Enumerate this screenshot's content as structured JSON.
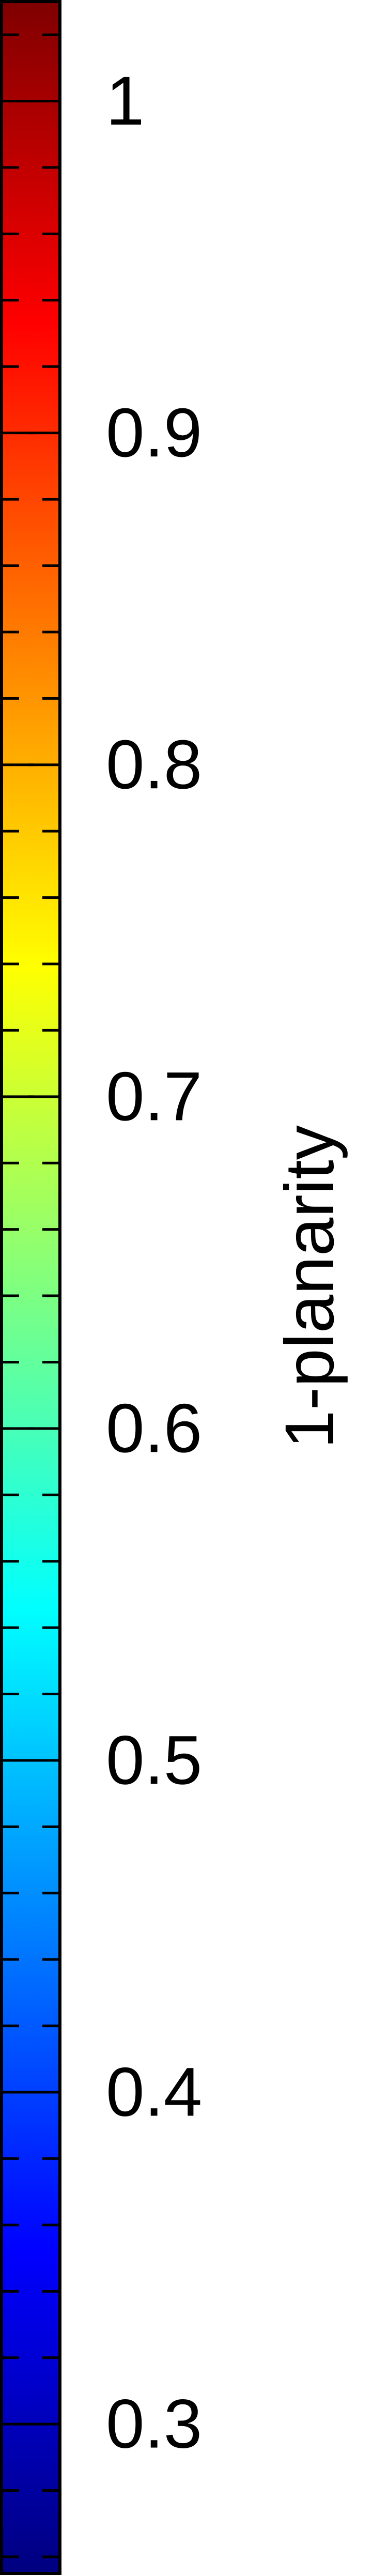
{
  "chart_data": {
    "type": "colorbar",
    "colormap": "jet",
    "orientation": "vertical",
    "label": "1-planarity",
    "range": [
      0.255,
      1.03
    ],
    "major_ticks": [
      0.3,
      0.4,
      0.5,
      0.6,
      0.7,
      0.8,
      0.9,
      1.0
    ],
    "tick_labels": [
      "0.3",
      "0.4",
      "0.5",
      "0.6",
      "0.7",
      "0.8",
      "0.9",
      "1"
    ],
    "minor_tick_step": 0.02,
    "colors": {
      "bottom": "#00007f",
      "blue": "#0000ff",
      "cyan": "#00ffff",
      "yellow": "#ffff00",
      "red": "#ff0000",
      "top": "#7f0000",
      "frame": "#000000"
    }
  }
}
